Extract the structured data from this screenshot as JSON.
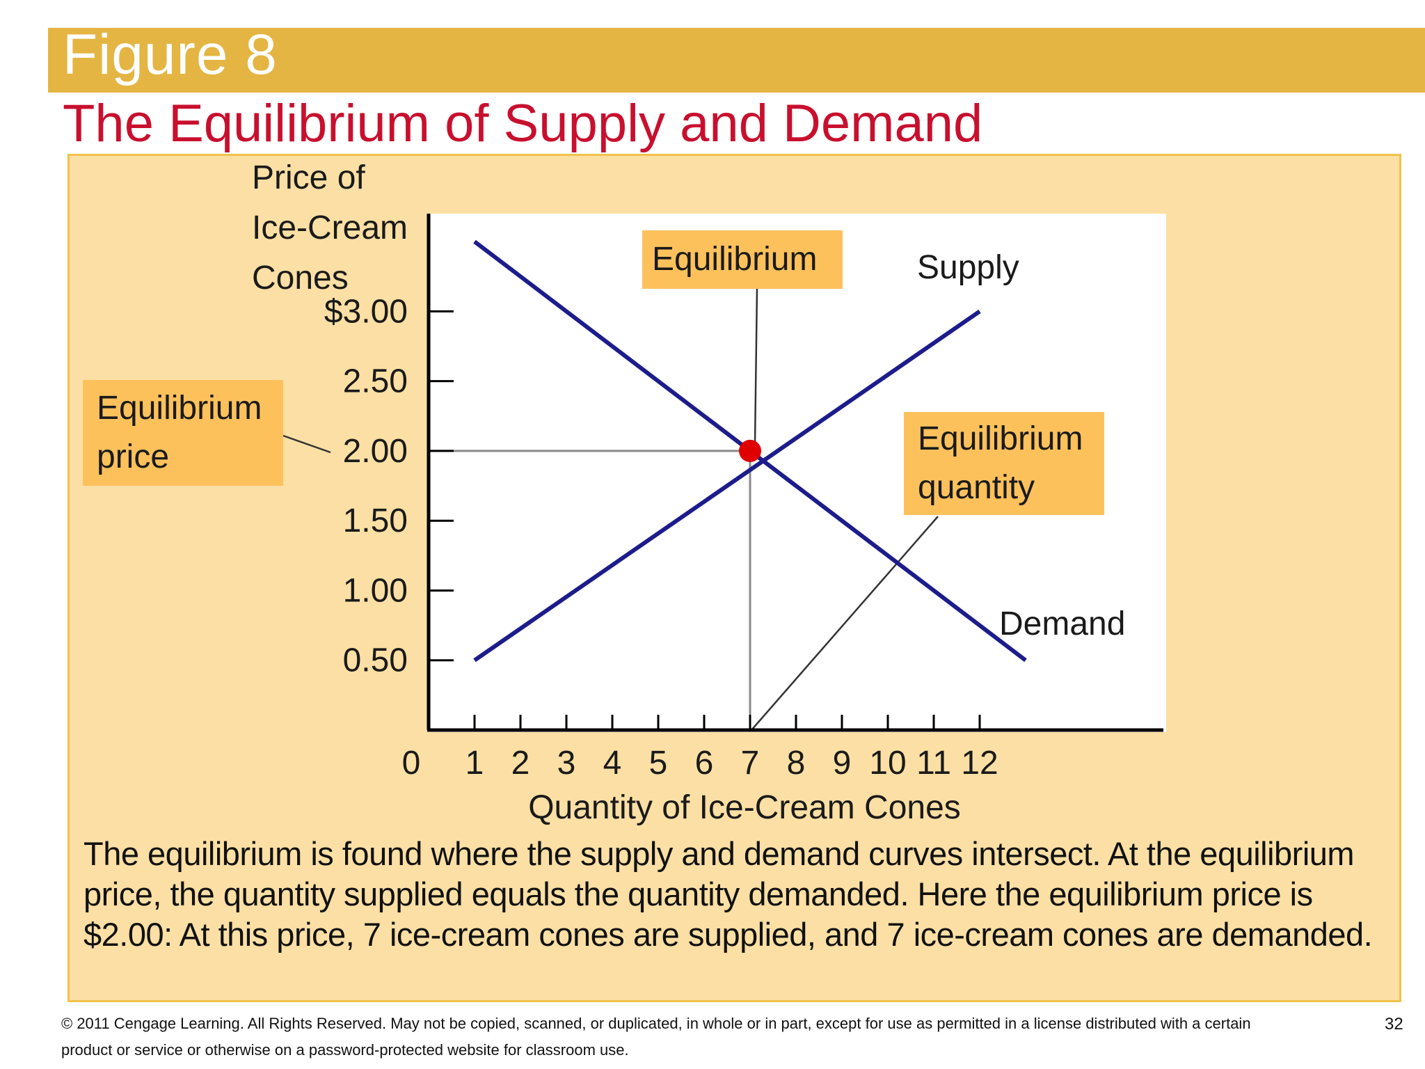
{
  "header": {
    "figure_label": "Figure 8",
    "title": "The Equilibrium of Supply and Demand"
  },
  "chart_data": {
    "type": "line",
    "title": "The Equilibrium of Supply and Demand",
    "ylabel_lines": [
      "Price of",
      "Ice-Cream",
      "Cones"
    ],
    "xlabel": "Quantity of Ice-Cream Cones",
    "x_ticks": [
      "0",
      "1",
      "2",
      "3",
      "4",
      "5",
      "6",
      "7",
      "8",
      "9",
      "10",
      "11",
      "12"
    ],
    "y_ticks": [
      "0.50",
      "1.00",
      "1.50",
      "2.00",
      "2.50",
      "$3.00"
    ],
    "y_tick_values": [
      0.5,
      1.0,
      1.5,
      2.0,
      2.5,
      3.0
    ],
    "xlim": [
      0,
      16
    ],
    "ylim": [
      0,
      3.7
    ],
    "series": [
      {
        "name": "Supply",
        "x": [
          1,
          12
        ],
        "y": [
          0.5,
          3.0
        ],
        "color": "#1c1c8c"
      },
      {
        "name": "Demand",
        "x": [
          1,
          13
        ],
        "y": [
          3.5,
          0.5
        ],
        "color": "#1c1c8c"
      }
    ],
    "equilibrium": {
      "x": 7,
      "y": 2.0,
      "color": "#e00000"
    },
    "annotations": {
      "equilibrium": "Equilibrium",
      "price_lines": [
        "Equilibrium",
        "price"
      ],
      "quantity_lines": [
        "Equilibrium",
        "quantity"
      ]
    }
  },
  "caption": "The equilibrium is found where the supply and demand curves intersect. At the equilibrium price, the quantity supplied equals the quantity demanded. Here the equilibrium price is $2.00: At this price, 7 ice-cream cones are supplied, and 7 ice-cream cones are demanded.",
  "footer": {
    "copyright": "© 2011 Cengage Learning. All Rights Reserved. May not be copied, scanned, or duplicated, in whole or in part, except for use as permitted in a license distributed with a certain product or service or otherwise on a password-protected website for classroom use.",
    "page_number": "32"
  }
}
